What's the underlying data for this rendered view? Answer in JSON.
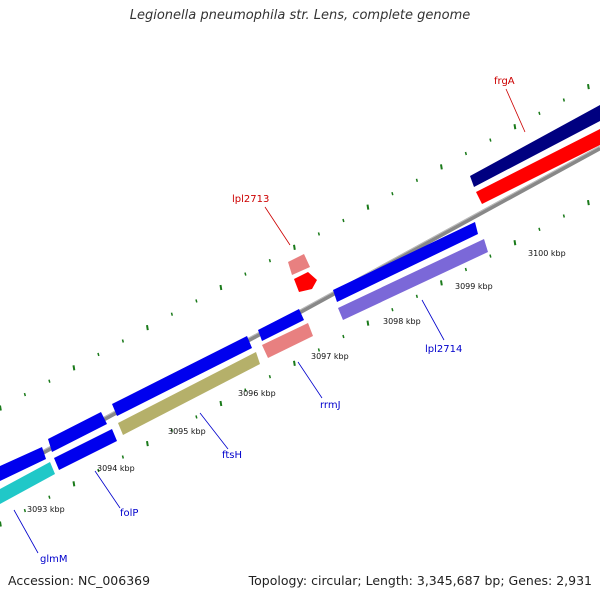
{
  "title": "Legionella pneumophila str. Lens, complete genome",
  "footer": {
    "accession": "Accession: NC_006369",
    "summary": "Topology: circular; Length: 3,345,687 bp; Genes: 2,931"
  },
  "scale_labels": [
    "3093 kbp",
    "3094 kbp",
    "3095 kbp",
    "3096 kbp",
    "3097 kbp",
    "3098 kbp",
    "3099 kbp",
    "3100 kbp"
  ],
  "gene_labels": {
    "glmM": "glmM",
    "folP": "folP",
    "ftsH": "ftsH",
    "rrmJ": "rrmJ",
    "lpl2714": "lpl2714",
    "lpl2713": "lpl2713",
    "frgA": "frgA"
  },
  "colors": {
    "cds_blue": "#0000ee",
    "gene_cyan": "#20c8c8",
    "gene_olive": "#b5b06a",
    "gene_salmon": "#e88080",
    "gene_red": "#ff0000",
    "gene_navy": "#000080",
    "gene_slate": "#7b68d8",
    "backbone": "#808080",
    "tick": "#1a7a1a",
    "label_blue": "#0000cc",
    "label_red": "#cc0000"
  }
}
